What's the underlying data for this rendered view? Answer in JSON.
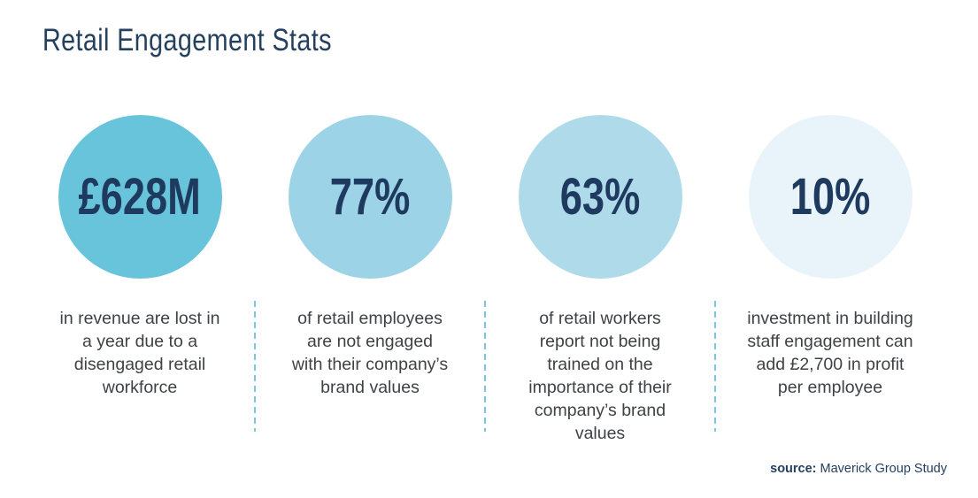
{
  "page": {
    "title": "Retail Engagement Stats"
  },
  "colors": {
    "navy_title": "#24405E",
    "navy_value": "#1E3A5E",
    "description_gray": "#3F4245",
    "divider_blue": "#76C7DF"
  },
  "chart_data": {
    "type": "pie",
    "title": "Retail Engagement Stats",
    "note": "infographic of four stat circles",
    "stats": [
      {
        "value": "£628M",
        "description": "in revenue are lost in\na year due to a\ndisengaged retail\nworkforce",
        "circle_color": "#68C4DA"
      },
      {
        "value": "77%",
        "description": "of retail employees\nare not engaged\nwith  their company’s\nbrand values",
        "circle_color": "#9DD3E6"
      },
      {
        "value": "63%",
        "description": "of retail workers\nreport not being\ntrained on the\nimportance of their\ncompany’s brand\nvalues",
        "circle_color": "#AEDAEA"
      },
      {
        "value": "10%",
        "description": "investment in building\nstaff engagement can\nadd £2,700 in profit\nper employee",
        "circle_color": "#E9F4FA"
      }
    ]
  },
  "source": {
    "label": "source:",
    "value": " Maverick Group Study"
  }
}
